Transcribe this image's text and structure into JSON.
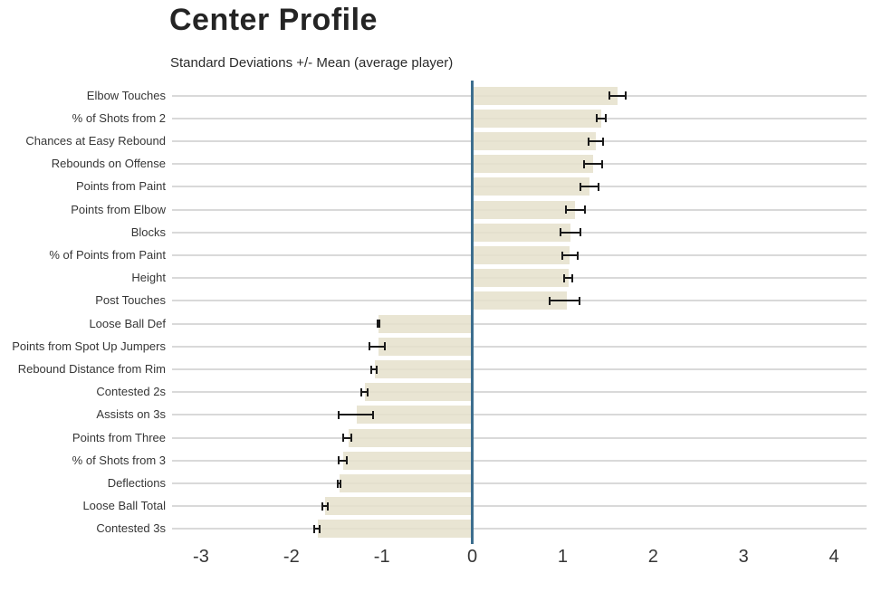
{
  "header": {
    "title": "Center Profile",
    "subtitle": "Standard Deviations +/- Mean (average player)"
  },
  "colors": {
    "bar_fill": "#e9e5d3",
    "zero_line": "#3d6e8e",
    "gridline": "#d9d9d9",
    "error_bar": "#1a1a1a",
    "title_text": "#242424",
    "label_text": "#363636",
    "background": "#ffffff"
  },
  "chart_data": {
    "type": "bar",
    "orientation": "horizontal",
    "title": "Center Profile",
    "subtitle": "Standard Deviations +/- Mean (average player)",
    "xlabel": "",
    "ylabel": "",
    "xlim": [
      -3.32,
      4.36
    ],
    "x_ticks": [
      -3,
      -2,
      -1,
      0,
      1,
      2,
      3,
      4
    ],
    "grid": "horizontal-rows-only",
    "zero_reference_line": true,
    "legend": "none",
    "error_bars": true,
    "categories": [
      "Elbow Touches",
      "% of Shots from 2",
      "Chances at Easy Rebound",
      "Rebounds on Offense",
      "Points from Paint",
      "Points from Elbow",
      "Blocks",
      "% of Points from Paint",
      "Height",
      "Post Touches",
      "Loose Ball Def",
      "Points from Spot Up Jumpers",
      "Rebound Distance from Rim",
      "Contested 2s",
      "Assists on 3s",
      "Points from Three",
      "% of Shots from 3",
      "Deflections",
      "Loose Ball Total",
      "Contested 3s"
    ],
    "values": [
      1.61,
      1.43,
      1.37,
      1.34,
      1.3,
      1.14,
      1.09,
      1.08,
      1.07,
      1.05,
      -1.04,
      -1.04,
      -1.08,
      -1.19,
      -1.28,
      -1.37,
      -1.43,
      -1.47,
      -1.63,
      -1.71
    ],
    "error_low": [
      1.51,
      1.37,
      1.28,
      1.23,
      1.19,
      1.03,
      0.97,
      0.99,
      1.01,
      0.85,
      -1.06,
      -1.15,
      -1.13,
      -1.24,
      -1.49,
      -1.44,
      -1.49,
      -1.5,
      -1.67,
      -1.76
    ],
    "error_high": [
      1.71,
      1.49,
      1.46,
      1.45,
      1.41,
      1.26,
      1.21,
      1.18,
      1.12,
      1.2,
      -1.02,
      -0.96,
      -1.05,
      -1.15,
      -1.09,
      -1.33,
      -1.38,
      -1.45,
      -1.59,
      -1.68
    ]
  }
}
